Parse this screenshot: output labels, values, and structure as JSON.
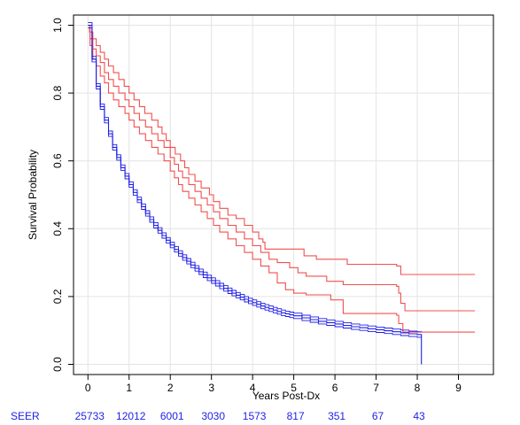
{
  "chart_data": {
    "type": "line",
    "xlabel": "Years Post-Dx",
    "ylabel": "Survival Probability",
    "xlim": [
      -0.35,
      9.85
    ],
    "ylim": [
      -0.03,
      1.03
    ],
    "xticks": [
      "0",
      "1",
      "2",
      "3",
      "4",
      "5",
      "6",
      "7",
      "8",
      "9"
    ],
    "yticks": [
      "0.0",
      "0.2",
      "0.4",
      "0.6",
      "0.8",
      "1.0"
    ],
    "grid": true,
    "colors": {
      "red": "#f0504f",
      "blue": "#1f1fe6",
      "risk_label": "#1f1fe6",
      "grid": "#e4e4e4"
    },
    "series": [
      {
        "color": "#f0504f",
        "points": [
          [
            0,
            1.0
          ],
          [
            0.04,
            0.98
          ],
          [
            0.12,
            0.96
          ],
          [
            0.2,
            0.94
          ],
          [
            0.3,
            0.92
          ],
          [
            0.4,
            0.9
          ],
          [
            0.5,
            0.88
          ],
          [
            0.62,
            0.86
          ],
          [
            0.75,
            0.84
          ],
          [
            0.88,
            0.82
          ],
          [
            1.0,
            0.8
          ],
          [
            1.12,
            0.78
          ],
          [
            1.25,
            0.76
          ],
          [
            1.38,
            0.74
          ],
          [
            1.55,
            0.72
          ],
          [
            1.7,
            0.7
          ],
          [
            1.8,
            0.68
          ],
          [
            1.9,
            0.66
          ],
          [
            2.0,
            0.64
          ],
          [
            2.12,
            0.62
          ],
          [
            2.25,
            0.6
          ],
          [
            2.35,
            0.58
          ],
          [
            2.45,
            0.56
          ],
          [
            2.6,
            0.54
          ],
          [
            2.75,
            0.52
          ],
          [
            2.95,
            0.5
          ],
          [
            3.05,
            0.48
          ],
          [
            3.2,
            0.46
          ],
          [
            3.4,
            0.44
          ],
          [
            3.6,
            0.43
          ],
          [
            3.8,
            0.41
          ],
          [
            4.0,
            0.39
          ],
          [
            4.15,
            0.37
          ],
          [
            4.25,
            0.36
          ],
          [
            4.3,
            0.34
          ],
          [
            4.9,
            0.34
          ],
          [
            5.25,
            0.32
          ],
          [
            5.55,
            0.31
          ],
          [
            6.3,
            0.295
          ],
          [
            7.5,
            0.29
          ],
          [
            7.6,
            0.265
          ],
          [
            9.4,
            0.265
          ]
        ]
      },
      {
        "color": "#f0504f",
        "points": [
          [
            0,
            1.0
          ],
          [
            0.05,
            0.96
          ],
          [
            0.12,
            0.93
          ],
          [
            0.2,
            0.91
          ],
          [
            0.3,
            0.89
          ],
          [
            0.4,
            0.86
          ],
          [
            0.5,
            0.84
          ],
          [
            0.62,
            0.82
          ],
          [
            0.75,
            0.8
          ],
          [
            0.9,
            0.78
          ],
          [
            1.0,
            0.76
          ],
          [
            1.12,
            0.74
          ],
          [
            1.25,
            0.72
          ],
          [
            1.4,
            0.7
          ],
          [
            1.55,
            0.68
          ],
          [
            1.7,
            0.66
          ],
          [
            1.85,
            0.64
          ],
          [
            2.0,
            0.61
          ],
          [
            2.1,
            0.59
          ],
          [
            2.2,
            0.57
          ],
          [
            2.3,
            0.55
          ],
          [
            2.45,
            0.53
          ],
          [
            2.6,
            0.51
          ],
          [
            2.75,
            0.49
          ],
          [
            2.9,
            0.47
          ],
          [
            3.05,
            0.45
          ],
          [
            3.2,
            0.43
          ],
          [
            3.4,
            0.41
          ],
          [
            3.6,
            0.39
          ],
          [
            3.8,
            0.37
          ],
          [
            4.0,
            0.35
          ],
          [
            4.2,
            0.33
          ],
          [
            4.4,
            0.31
          ],
          [
            4.6,
            0.3
          ],
          [
            4.9,
            0.285
          ],
          [
            5.1,
            0.27
          ],
          [
            5.3,
            0.26
          ],
          [
            5.8,
            0.245
          ],
          [
            6.2,
            0.235
          ],
          [
            7.5,
            0.23
          ],
          [
            7.55,
            0.21
          ],
          [
            7.6,
            0.18
          ],
          [
            7.7,
            0.158
          ],
          [
            9.4,
            0.158
          ]
        ]
      },
      {
        "color": "#f0504f",
        "points": [
          [
            0,
            1.0
          ],
          [
            0.05,
            0.94
          ],
          [
            0.12,
            0.9
          ],
          [
            0.2,
            0.88
          ],
          [
            0.3,
            0.85
          ],
          [
            0.4,
            0.83
          ],
          [
            0.5,
            0.8
          ],
          [
            0.62,
            0.78
          ],
          [
            0.75,
            0.76
          ],
          [
            0.9,
            0.74
          ],
          [
            1.0,
            0.72
          ],
          [
            1.12,
            0.7
          ],
          [
            1.25,
            0.68
          ],
          [
            1.4,
            0.66
          ],
          [
            1.55,
            0.64
          ],
          [
            1.7,
            0.62
          ],
          [
            1.85,
            0.6
          ],
          [
            2.0,
            0.57
          ],
          [
            2.1,
            0.55
          ],
          [
            2.2,
            0.53
          ],
          [
            2.3,
            0.51
          ],
          [
            2.45,
            0.49
          ],
          [
            2.6,
            0.47
          ],
          [
            2.75,
            0.45
          ],
          [
            2.9,
            0.43
          ],
          [
            3.05,
            0.41
          ],
          [
            3.2,
            0.39
          ],
          [
            3.4,
            0.37
          ],
          [
            3.6,
            0.35
          ],
          [
            3.8,
            0.33
          ],
          [
            4.0,
            0.31
          ],
          [
            4.2,
            0.29
          ],
          [
            4.4,
            0.27
          ],
          [
            4.6,
            0.24
          ],
          [
            4.8,
            0.22
          ],
          [
            5.0,
            0.21
          ],
          [
            5.3,
            0.205
          ],
          [
            5.9,
            0.19
          ],
          [
            6.2,
            0.15
          ],
          [
            7.5,
            0.145
          ],
          [
            7.55,
            0.12
          ],
          [
            7.65,
            0.095
          ],
          [
            9.4,
            0.095
          ]
        ]
      },
      {
        "color": "#1f1fe6",
        "points": [
          [
            0,
            1.0
          ],
          [
            0.1,
            0.9
          ],
          [
            0.2,
            0.82
          ],
          [
            0.3,
            0.76
          ],
          [
            0.4,
            0.72
          ],
          [
            0.5,
            0.68
          ],
          [
            0.6,
            0.64
          ],
          [
            0.7,
            0.61
          ],
          [
            0.8,
            0.58
          ],
          [
            0.9,
            0.555
          ],
          [
            1.0,
            0.53
          ],
          [
            1.1,
            0.507
          ],
          [
            1.2,
            0.485
          ],
          [
            1.3,
            0.465
          ],
          [
            1.4,
            0.445
          ],
          [
            1.5,
            0.427
          ],
          [
            1.6,
            0.41
          ],
          [
            1.7,
            0.395
          ],
          [
            1.8,
            0.38
          ],
          [
            1.9,
            0.366
          ],
          [
            2.0,
            0.352
          ],
          [
            2.1,
            0.339
          ],
          [
            2.2,
            0.327
          ],
          [
            2.3,
            0.315
          ],
          [
            2.4,
            0.304
          ],
          [
            2.5,
            0.293
          ],
          [
            2.6,
            0.283
          ],
          [
            2.7,
            0.273
          ],
          [
            2.8,
            0.264
          ],
          [
            2.9,
            0.255
          ],
          [
            3.0,
            0.247
          ],
          [
            3.1,
            0.239
          ],
          [
            3.2,
            0.231
          ],
          [
            3.3,
            0.224
          ],
          [
            3.4,
            0.217
          ],
          [
            3.5,
            0.21
          ],
          [
            3.6,
            0.204
          ],
          [
            3.7,
            0.198
          ],
          [
            3.8,
            0.192
          ],
          [
            3.9,
            0.187
          ],
          [
            4.0,
            0.182
          ],
          [
            4.1,
            0.177
          ],
          [
            4.2,
            0.172
          ],
          [
            4.3,
            0.168
          ],
          [
            4.4,
            0.164
          ],
          [
            4.5,
            0.16
          ],
          [
            4.6,
            0.156
          ],
          [
            4.7,
            0.152
          ],
          [
            4.8,
            0.149
          ],
          [
            4.9,
            0.146
          ],
          [
            5.0,
            0.143
          ],
          [
            5.2,
            0.137
          ],
          [
            5.4,
            0.132
          ],
          [
            5.6,
            0.127
          ],
          [
            5.8,
            0.123
          ],
          [
            6.0,
            0.119
          ],
          [
            6.2,
            0.115
          ],
          [
            6.4,
            0.111
          ],
          [
            6.6,
            0.108
          ],
          [
            6.8,
            0.105
          ],
          [
            7.0,
            0.102
          ],
          [
            7.2,
            0.099
          ],
          [
            7.4,
            0.096
          ],
          [
            7.6,
            0.093
          ],
          [
            7.8,
            0.09
          ],
          [
            8.0,
            0.088
          ],
          [
            8.1,
            0.087
          ]
        ],
        "band": 0.008,
        "drop_to": 0.0
      }
    ],
    "risk_table": {
      "label": "SEER",
      "counts": [
        "25733",
        "12012",
        "6001",
        "3030",
        "1573",
        "817",
        "351",
        "67",
        "43"
      ],
      "count_years": [
        0,
        1,
        2,
        3,
        4,
        5,
        6,
        7,
        8
      ]
    }
  }
}
